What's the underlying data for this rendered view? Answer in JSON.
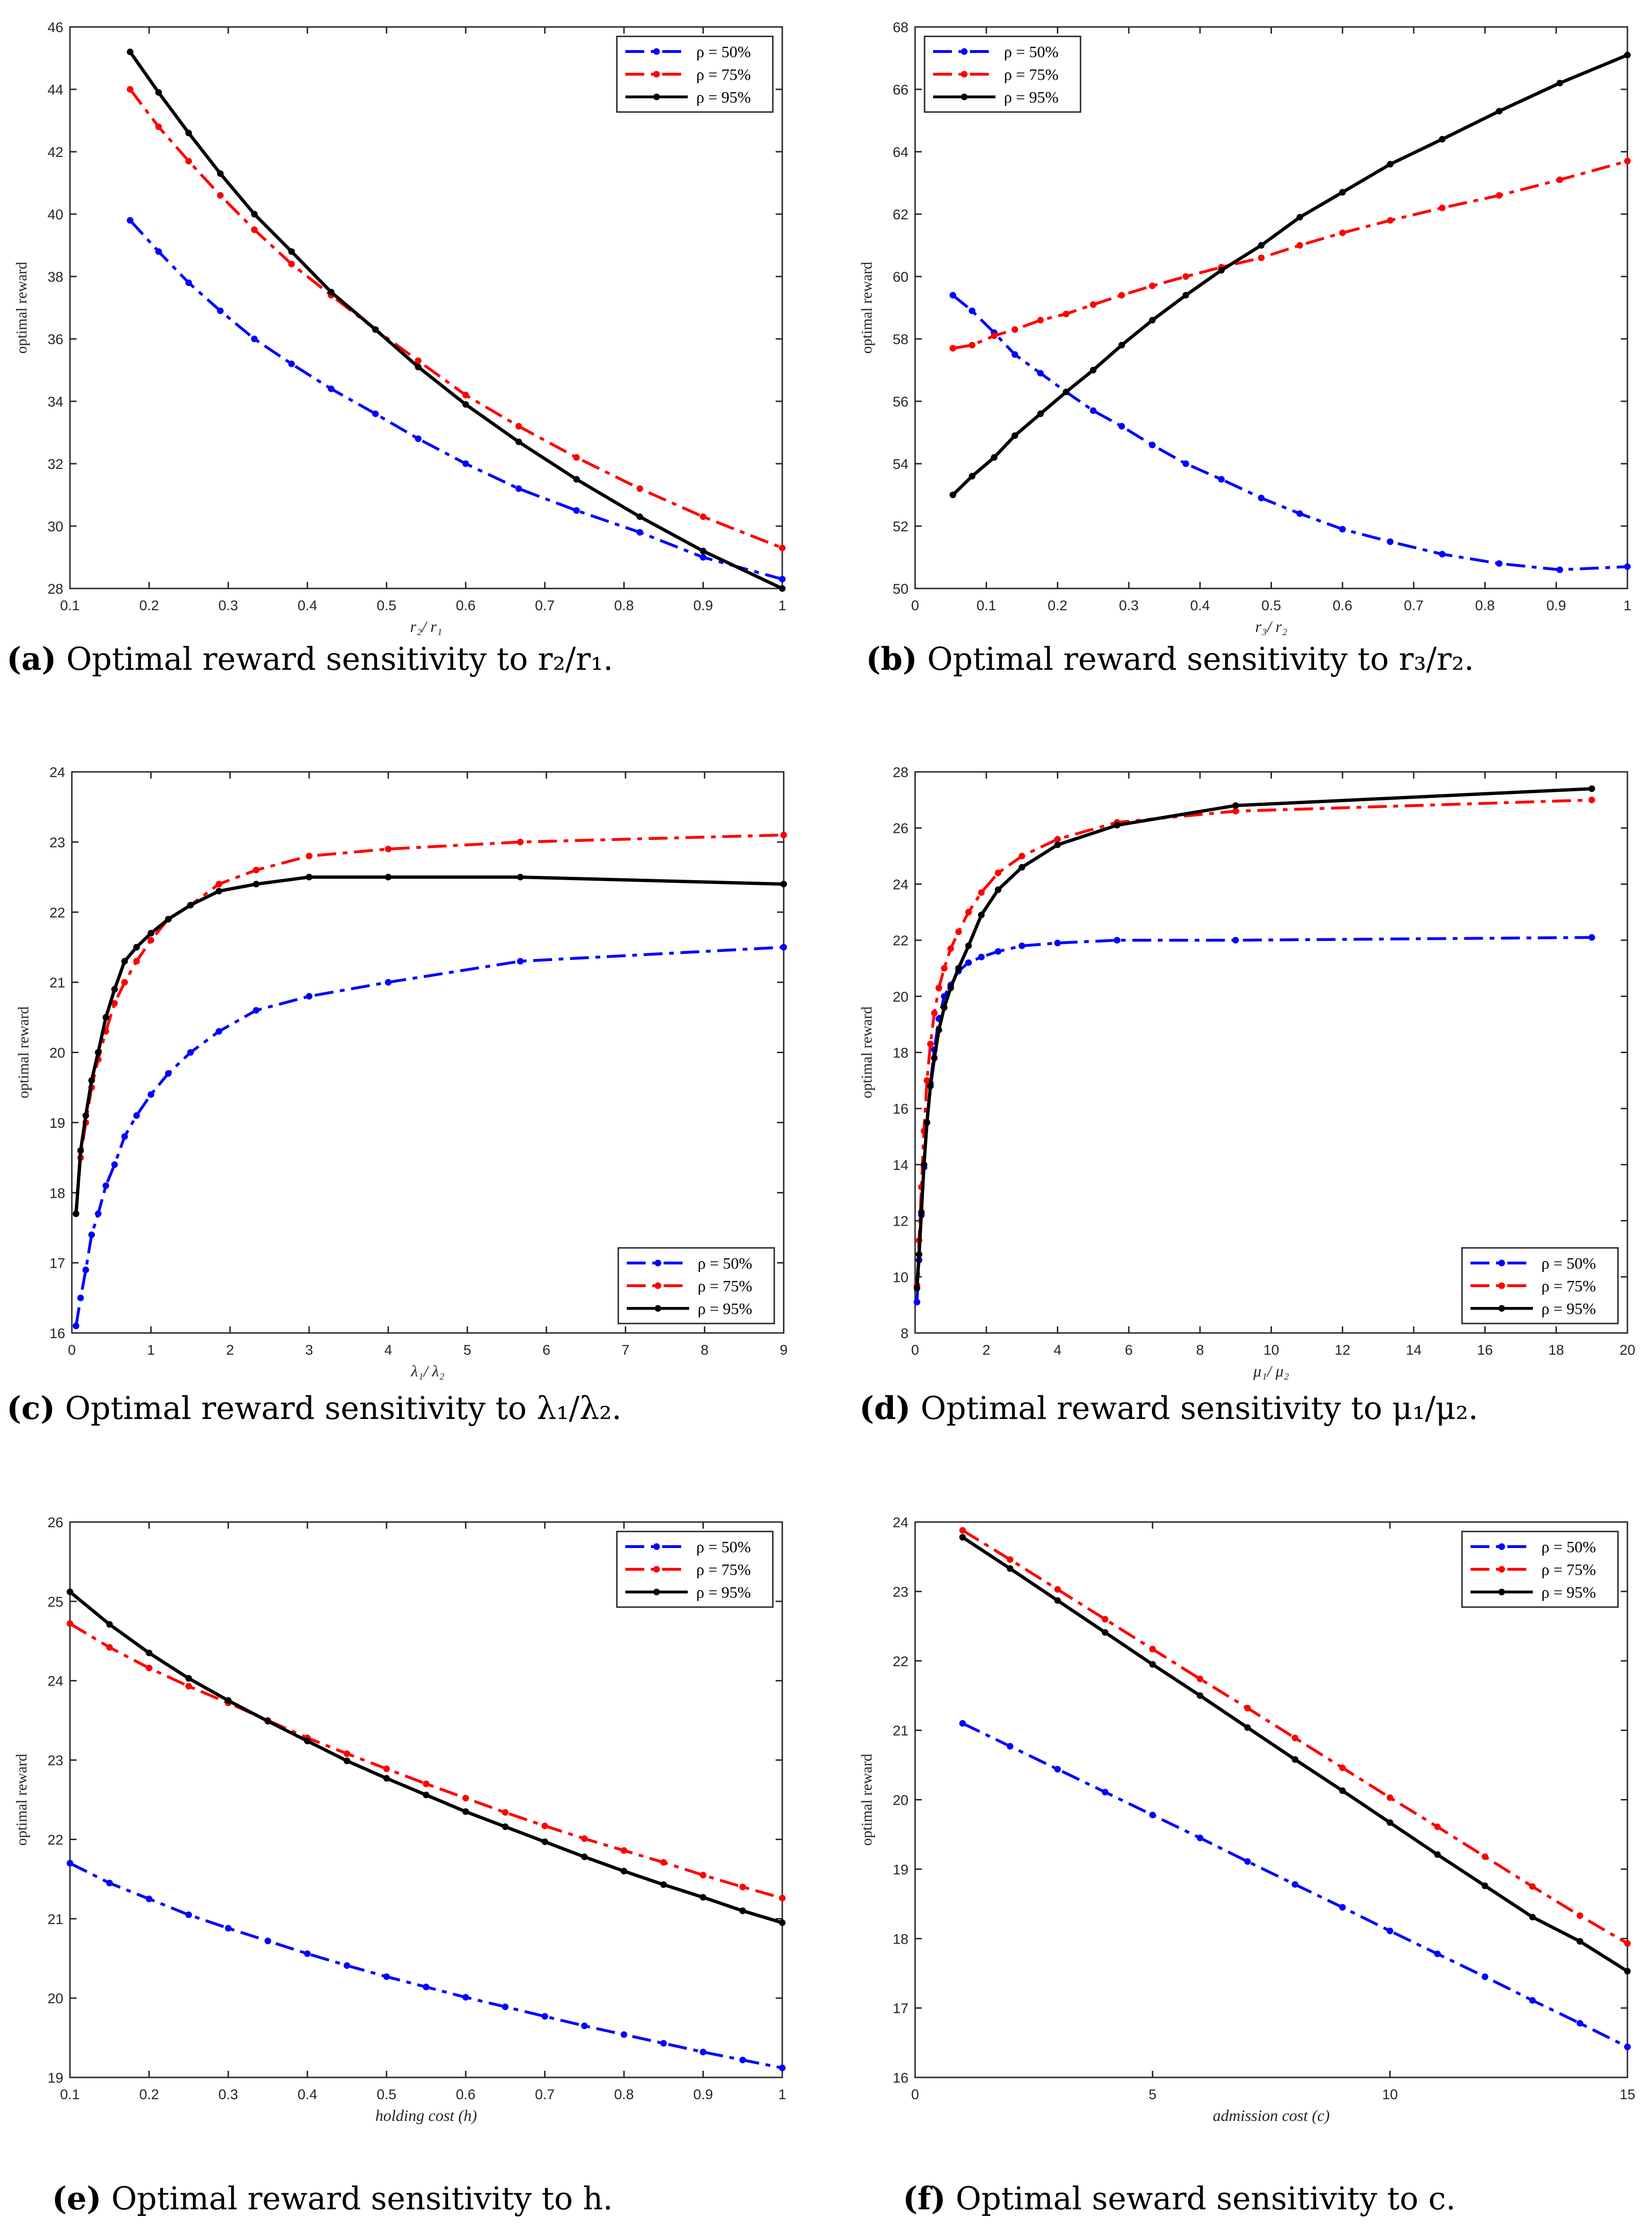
{
  "figure": {
    "legend_labels": [
      "ρ = 50%",
      "ρ = 75%",
      "ρ = 95%"
    ],
    "series_colors": [
      "#0000ff",
      "#ff0000",
      "#000000"
    ]
  },
  "captions": [
    {
      "letter": "(a)",
      "text": "Optimal reward sensitivity to r₂/r₁."
    },
    {
      "letter": "(b)",
      "text": "Optimal reward sensitivity to r₃/r₂."
    },
    {
      "letter": "(c)",
      "text": "Optimal reward sensitivity to λ₁/λ₂."
    },
    {
      "letter": "(d)",
      "text": "Optimal reward sensitivity to μ₁/μ₂."
    },
    {
      "letter": "(e)",
      "text": "Optimal reward sensitivity to h."
    },
    {
      "letter": "(f)",
      "text": "Optimal seward sensitivity to c."
    }
  ],
  "chart_data": [
    {
      "id": "a",
      "type": "line",
      "ylabel": "optimal reward",
      "xlabel": "r₂/ r₁",
      "xlim": [
        0.1,
        1
      ],
      "ylim": [
        28,
        46
      ],
      "legend": "top-right",
      "xticks": [
        0.1,
        0.2,
        0.3,
        0.4,
        0.5,
        0.6,
        0.7,
        0.8,
        0.9,
        1
      ],
      "yticks": [
        28,
        30,
        32,
        34,
        36,
        38,
        40,
        42,
        44,
        46
      ],
      "series": [
        {
          "name": "ρ = 50%",
          "x": [
            0.176,
            0.212,
            0.25,
            0.29,
            0.333,
            0.38,
            0.43,
            0.486,
            0.54,
            0.6,
            0.667,
            0.74,
            0.82,
            0.9,
            1.0
          ],
          "y": [
            39.8,
            38.8,
            37.8,
            36.9,
            36.0,
            35.2,
            34.4,
            33.6,
            32.8,
            32.0,
            31.2,
            30.5,
            29.8,
            29.0,
            28.3
          ]
        },
        {
          "name": "ρ = 75%",
          "x": [
            0.176,
            0.212,
            0.25,
            0.29,
            0.333,
            0.38,
            0.43,
            0.486,
            0.54,
            0.6,
            0.667,
            0.74,
            0.82,
            0.9,
            1.0
          ],
          "y": [
            44.0,
            42.8,
            41.7,
            40.6,
            39.5,
            38.4,
            37.4,
            36.3,
            35.3,
            34.2,
            33.2,
            32.2,
            31.2,
            30.3,
            29.3
          ]
        },
        {
          "name": "ρ = 95%",
          "x": [
            0.176,
            0.212,
            0.25,
            0.29,
            0.333,
            0.38,
            0.43,
            0.486,
            0.54,
            0.6,
            0.667,
            0.74,
            0.82,
            0.9,
            1.0
          ],
          "y": [
            45.2,
            43.9,
            42.6,
            41.3,
            40.0,
            38.8,
            37.5,
            36.3,
            35.1,
            33.9,
            32.7,
            31.5,
            30.3,
            29.2,
            28.0
          ]
        }
      ]
    },
    {
      "id": "b",
      "type": "line",
      "ylabel": "optimal reward",
      "xlabel": "r₃/ r₂",
      "xlim": [
        0,
        1
      ],
      "ylim": [
        50,
        68
      ],
      "legend": "top-left",
      "xticks": [
        0,
        0.1,
        0.2,
        0.3,
        0.4,
        0.5,
        0.6,
        0.7,
        0.8,
        0.9,
        1
      ],
      "yticks": [
        50,
        52,
        54,
        56,
        58,
        60,
        62,
        64,
        66,
        68
      ],
      "series": [
        {
          "name": "ρ = 50%",
          "x": [
            0.053,
            0.08,
            0.111,
            0.14,
            0.176,
            0.212,
            0.25,
            0.29,
            0.333,
            0.38,
            0.43,
            0.486,
            0.54,
            0.6,
            0.667,
            0.74,
            0.82,
            0.905,
            1.0
          ],
          "y": [
            59.4,
            58.9,
            58.2,
            57.5,
            56.9,
            56.3,
            55.7,
            55.2,
            54.6,
            54.0,
            53.5,
            52.9,
            52.4,
            51.9,
            51.5,
            51.1,
            50.8,
            50.6,
            50.7
          ]
        },
        {
          "name": "ρ = 75%",
          "x": [
            0.053,
            0.08,
            0.111,
            0.14,
            0.176,
            0.212,
            0.25,
            0.29,
            0.333,
            0.38,
            0.43,
            0.486,
            0.54,
            0.6,
            0.667,
            0.74,
            0.82,
            0.905,
            1.0
          ],
          "y": [
            57.7,
            57.8,
            58.1,
            58.3,
            58.6,
            58.8,
            59.1,
            59.4,
            59.7,
            60.0,
            60.3,
            60.6,
            61.0,
            61.4,
            61.8,
            62.2,
            62.6,
            63.1,
            63.7
          ]
        },
        {
          "name": "ρ = 95%",
          "x": [
            0.053,
            0.08,
            0.111,
            0.14,
            0.176,
            0.212,
            0.25,
            0.29,
            0.333,
            0.38,
            0.43,
            0.486,
            0.54,
            0.6,
            0.667,
            0.74,
            0.82,
            0.905,
            1.0
          ],
          "y": [
            53.0,
            53.6,
            54.2,
            54.9,
            55.6,
            56.3,
            57.0,
            57.8,
            58.6,
            59.4,
            60.2,
            61.0,
            61.9,
            62.7,
            63.6,
            64.4,
            65.3,
            66.2,
            67.1
          ]
        }
      ]
    },
    {
      "id": "c",
      "type": "line",
      "ylabel": "optimal reward",
      "xlabel": "λ₁/ λ₂",
      "xlim": [
        0,
        9
      ],
      "ylim": [
        16,
        24
      ],
      "legend": "bottom-right",
      "xticks": [
        0,
        1,
        2,
        3,
        4,
        5,
        6,
        7,
        8,
        9
      ],
      "yticks": [
        16,
        17,
        18,
        19,
        20,
        21,
        22,
        23,
        24
      ],
      "series": [
        {
          "name": "ρ = 50%",
          "x": [
            0.053,
            0.111,
            0.176,
            0.25,
            0.333,
            0.43,
            0.54,
            0.667,
            0.818,
            1.0,
            1.22,
            1.5,
            1.86,
            2.33,
            3.0,
            4.0,
            5.67,
            9.0
          ],
          "y": [
            16.1,
            16.5,
            16.9,
            17.4,
            17.7,
            18.1,
            18.4,
            18.8,
            19.1,
            19.4,
            19.7,
            20.0,
            20.3,
            20.6,
            20.8,
            21.0,
            21.3,
            21.5
          ]
        },
        {
          "name": "ρ = 75%",
          "x": [
            0.053,
            0.111,
            0.176,
            0.25,
            0.333,
            0.43,
            0.54,
            0.667,
            0.818,
            1.0,
            1.22,
            1.5,
            1.86,
            2.33,
            3.0,
            4.0,
            5.67,
            9.0
          ],
          "y": [
            17.7,
            18.5,
            19.0,
            19.5,
            19.9,
            20.3,
            20.7,
            21.0,
            21.3,
            21.6,
            21.9,
            22.1,
            22.4,
            22.6,
            22.8,
            22.9,
            23.0,
            23.1
          ]
        },
        {
          "name": "ρ = 95%",
          "x": [
            0.053,
            0.111,
            0.176,
            0.25,
            0.333,
            0.43,
            0.54,
            0.667,
            0.818,
            1.0,
            1.22,
            1.5,
            1.86,
            2.33,
            3.0,
            4.0,
            5.67,
            9.0
          ],
          "y": [
            17.7,
            18.6,
            19.1,
            19.6,
            20.0,
            20.5,
            20.9,
            21.3,
            21.5,
            21.7,
            21.9,
            22.1,
            22.3,
            22.4,
            22.5,
            22.5,
            22.5,
            22.4
          ]
        }
      ]
    },
    {
      "id": "d",
      "type": "line",
      "ylabel": "optimal reward",
      "xlabel": "μ₁/ μ₂",
      "xlim": [
        0,
        20
      ],
      "ylim": [
        8,
        28
      ],
      "legend": "bottom-right",
      "xticks": [
        0,
        2,
        4,
        6,
        8,
        10,
        12,
        14,
        16,
        18,
        20
      ],
      "yticks": [
        8,
        10,
        12,
        14,
        16,
        18,
        20,
        22,
        24,
        26,
        28
      ],
      "series": [
        {
          "name": "ρ = 50%",
          "x": [
            0.053,
            0.111,
            0.176,
            0.25,
            0.333,
            0.43,
            0.54,
            0.667,
            0.818,
            1.0,
            1.22,
            1.5,
            1.86,
            2.33,
            3.0,
            4.0,
            5.67,
            9.0,
            19.0
          ],
          "y": [
            9.1,
            10.6,
            12.2,
            13.9,
            15.5,
            16.9,
            18.1,
            19.2,
            20.0,
            20.4,
            20.9,
            21.2,
            21.4,
            21.6,
            21.8,
            21.9,
            22.0,
            22.0,
            22.1
          ]
        },
        {
          "name": "ρ = 75%",
          "x": [
            0.053,
            0.111,
            0.176,
            0.25,
            0.333,
            0.43,
            0.54,
            0.667,
            0.818,
            1.0,
            1.22,
            1.5,
            1.86,
            2.33,
            3.0,
            4.0,
            5.67,
            9.0,
            19.0
          ],
          "y": [
            9.7,
            11.3,
            13.2,
            15.2,
            17.0,
            18.3,
            19.4,
            20.3,
            21.0,
            21.7,
            22.3,
            23.0,
            23.7,
            24.4,
            25.0,
            25.6,
            26.2,
            26.6,
            27.0
          ]
        },
        {
          "name": "ρ = 95%",
          "x": [
            0.053,
            0.111,
            0.176,
            0.25,
            0.333,
            0.43,
            0.54,
            0.667,
            0.818,
            1.0,
            1.22,
            1.5,
            1.86,
            2.33,
            3.0,
            4.0,
            5.67,
            9.0,
            19.0
          ],
          "y": [
            9.6,
            10.8,
            12.3,
            14.0,
            15.5,
            16.8,
            17.8,
            18.8,
            19.6,
            20.3,
            21.0,
            21.8,
            22.9,
            23.8,
            24.6,
            25.4,
            26.1,
            26.8,
            27.4
          ]
        }
      ]
    },
    {
      "id": "e",
      "type": "line",
      "ylabel": "optimal reward",
      "xlabel": "holding cost (h)",
      "xlim": [
        0.1,
        1
      ],
      "ylim": [
        19,
        26
      ],
      "legend": "top-right",
      "xticks": [
        0.1,
        0.2,
        0.3,
        0.4,
        0.5,
        0.6,
        0.7,
        0.8,
        0.9,
        1
      ],
      "yticks": [
        19,
        20,
        21,
        22,
        23,
        24,
        25,
        26
      ],
      "series": [
        {
          "name": "ρ = 50%",
          "x": [
            0.1,
            0.15,
            0.2,
            0.25,
            0.3,
            0.35,
            0.4,
            0.45,
            0.5,
            0.55,
            0.6,
            0.65,
            0.7,
            0.75,
            0.8,
            0.85,
            0.9,
            0.95,
            1.0
          ],
          "y": [
            21.7,
            21.45,
            21.25,
            21.05,
            20.88,
            20.72,
            20.56,
            20.41,
            20.27,
            20.14,
            20.01,
            19.89,
            19.77,
            19.65,
            19.54,
            19.43,
            19.32,
            19.22,
            19.12
          ]
        },
        {
          "name": "ρ = 75%",
          "x": [
            0.1,
            0.15,
            0.2,
            0.25,
            0.3,
            0.35,
            0.4,
            0.45,
            0.5,
            0.55,
            0.6,
            0.65,
            0.7,
            0.75,
            0.8,
            0.85,
            0.9,
            0.95,
            1.0
          ],
          "y": [
            24.72,
            24.42,
            24.16,
            23.93,
            23.72,
            23.5,
            23.28,
            23.08,
            22.89,
            22.7,
            22.52,
            22.34,
            22.17,
            22.01,
            21.86,
            21.71,
            21.55,
            21.4,
            21.26
          ]
        },
        {
          "name": "ρ = 95%",
          "x": [
            0.1,
            0.15,
            0.2,
            0.25,
            0.3,
            0.35,
            0.4,
            0.45,
            0.5,
            0.55,
            0.6,
            0.65,
            0.7,
            0.75,
            0.8,
            0.85,
            0.9,
            0.95,
            1.0
          ],
          "y": [
            25.12,
            24.71,
            24.35,
            24.03,
            23.75,
            23.49,
            23.24,
            22.99,
            22.77,
            22.56,
            22.35,
            22.16,
            21.97,
            21.78,
            21.6,
            21.43,
            21.27,
            21.1,
            20.95
          ]
        }
      ]
    },
    {
      "id": "f",
      "type": "line",
      "ylabel": "optimal reward",
      "xlabel": "admission cost (c)",
      "xlim": [
        0,
        15
      ],
      "ylim": [
        16,
        24
      ],
      "legend": "top-right",
      "xticks": [
        0,
        5,
        10,
        15
      ],
      "yticks": [
        16,
        17,
        18,
        19,
        20,
        21,
        22,
        23,
        24
      ],
      "series": [
        {
          "name": "ρ = 50%",
          "x": [
            1,
            2,
            3,
            4,
            5,
            6,
            7,
            8,
            9,
            10,
            11,
            12,
            13,
            14,
            15
          ],
          "y": [
            21.1,
            20.77,
            20.44,
            20.11,
            19.78,
            19.45,
            19.11,
            18.78,
            18.45,
            18.11,
            17.78,
            17.45,
            17.11,
            16.78,
            16.44
          ]
        },
        {
          "name": "ρ = 75%",
          "x": [
            1,
            2,
            3,
            4,
            5,
            6,
            7,
            8,
            9,
            10,
            11,
            12,
            13,
            14,
            15
          ],
          "y": [
            23.88,
            23.46,
            23.03,
            22.6,
            22.17,
            21.74,
            21.32,
            20.89,
            20.46,
            20.03,
            19.61,
            19.18,
            18.75,
            18.33,
            17.93
          ]
        },
        {
          "name": "ρ = 95%",
          "x": [
            1,
            2,
            3,
            4,
            5,
            6,
            7,
            8,
            9,
            10,
            11,
            12,
            13,
            14,
            15
          ],
          "y": [
            23.78,
            23.33,
            22.87,
            22.41,
            21.95,
            21.5,
            21.04,
            20.58,
            20.13,
            19.67,
            19.21,
            18.76,
            18.31,
            17.96,
            17.53
          ]
        }
      ]
    }
  ]
}
